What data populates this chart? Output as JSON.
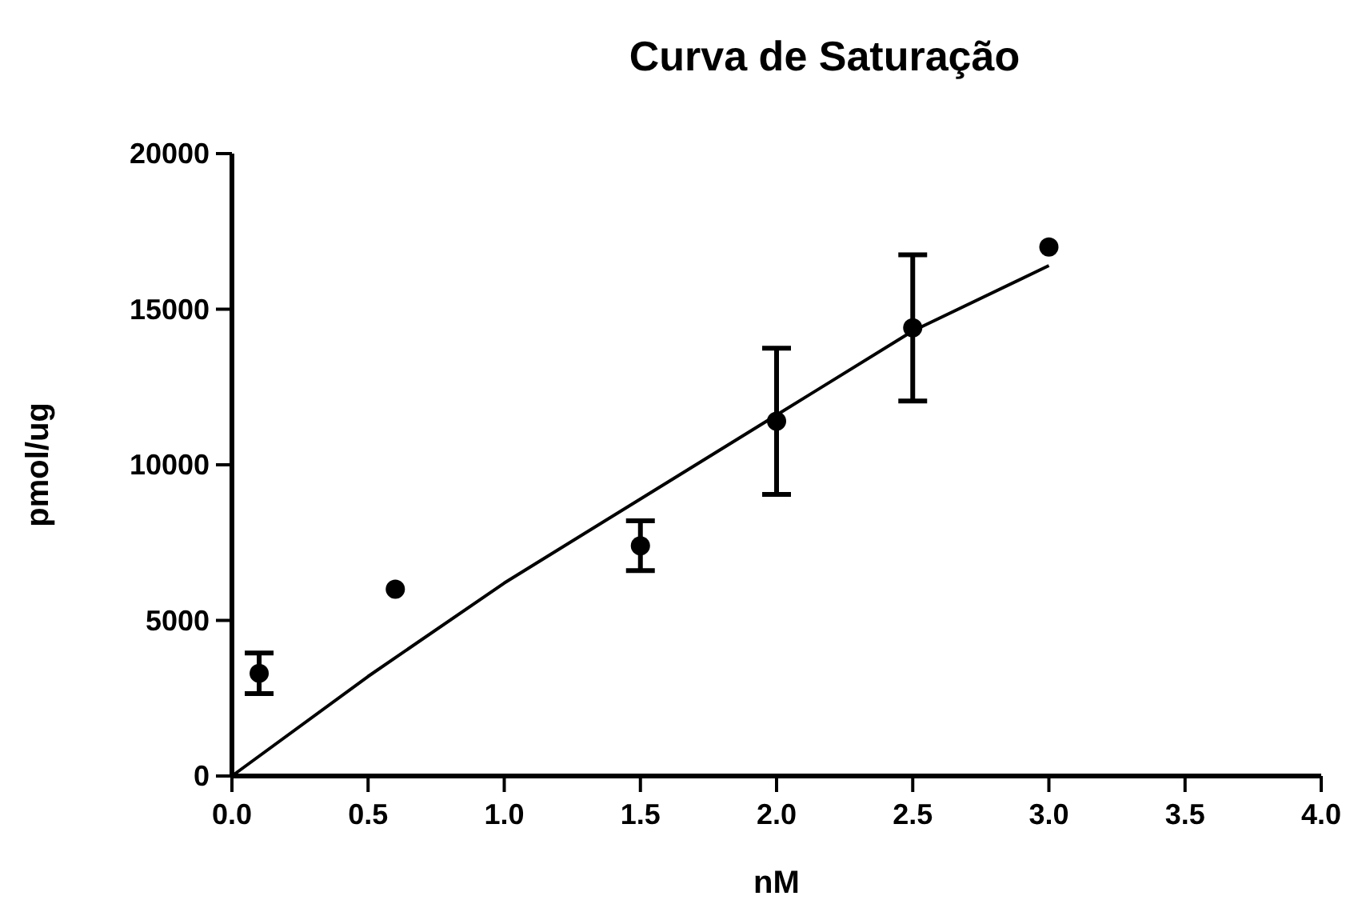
{
  "chart_data": {
    "type": "scatter",
    "title": "Curva de Saturação",
    "xlabel": "nM",
    "ylabel": "pmol/ug",
    "xlim": [
      0,
      4
    ],
    "xticks": [
      {
        "value": 0,
        "label": "0.0"
      },
      {
        "value": 0.5,
        "label": "0.5"
      },
      {
        "value": 1,
        "label": "1.0"
      },
      {
        "value": 1.5,
        "label": "1.5"
      },
      {
        "value": 2,
        "label": "2.0"
      },
      {
        "value": 2.5,
        "label": "2.5"
      },
      {
        "value": 3,
        "label": "3.0"
      },
      {
        "value": 3.5,
        "label": "3.5"
      },
      {
        "value": 4,
        "label": "4.0"
      }
    ],
    "ylim": [
      0,
      20000
    ],
    "yticks": [
      0,
      5000,
      10000,
      15000,
      20000
    ],
    "grid": false,
    "marker": "circle",
    "series": [
      {
        "color": "#000000",
        "x": [
          0.1,
          0.6,
          1.5,
          2.0,
          2.5,
          3.0
        ],
        "values": [
          3300,
          6000,
          7400,
          11400,
          14400,
          17000
        ],
        "errors": [
          650,
          null,
          800,
          2350,
          2350,
          null
        ]
      },
      {
        "type": "line",
        "color": "#000000",
        "marker": "none",
        "line_style": "solid",
        "x": [
          0,
          0.5,
          1.0,
          1.5,
          2.0,
          2.5,
          3.0
        ],
        "values": [
          0,
          3200,
          6200,
          8900,
          11600,
          14300,
          16400
        ]
      }
    ]
  }
}
